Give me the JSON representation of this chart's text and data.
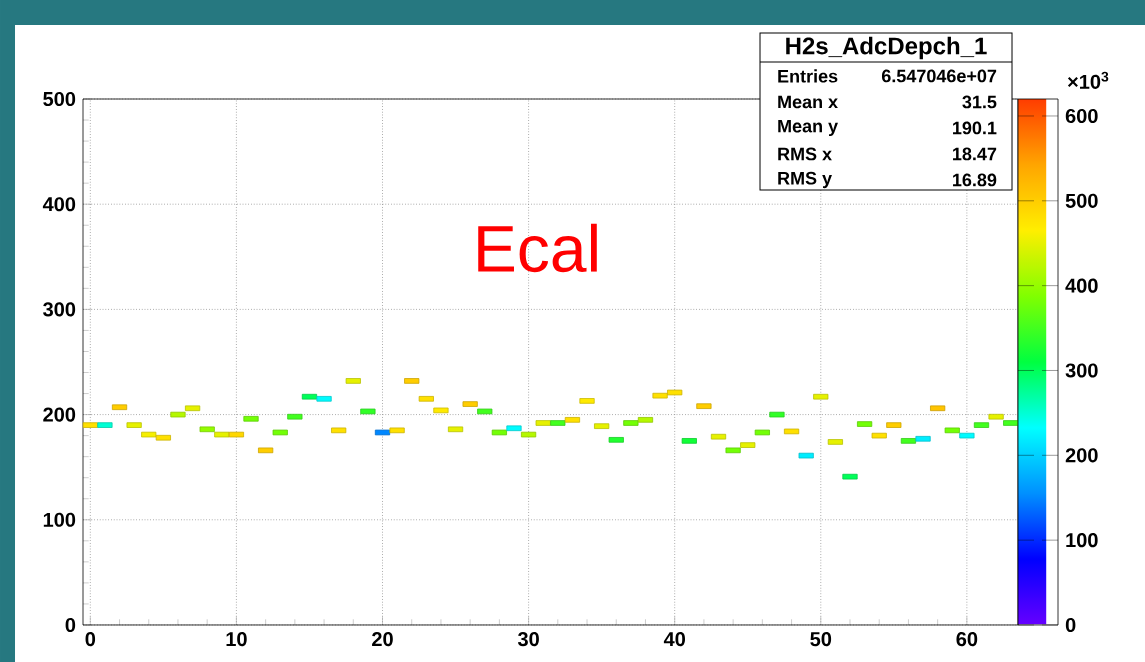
{
  "chart_data": {
    "type": "scatter",
    "title": "H2s_AdcDepch_1",
    "x": [
      0,
      1,
      2,
      3,
      4,
      5,
      6,
      7,
      8,
      9,
      10,
      11,
      12,
      13,
      14,
      15,
      16,
      17,
      18,
      19,
      20,
      21,
      22,
      23,
      24,
      25,
      26,
      27,
      28,
      29,
      30,
      31,
      32,
      33,
      34,
      35,
      36,
      37,
      38,
      39,
      40,
      41,
      42,
      43,
      44,
      45,
      46,
      47,
      48,
      49,
      50,
      51,
      52,
      53,
      54,
      55,
      56,
      57,
      58,
      59,
      60,
      61,
      62,
      63
    ],
    "values": [
      190,
      190,
      207,
      190,
      181,
      178,
      200,
      206,
      186,
      181,
      181,
      196,
      166,
      183,
      198,
      217,
      215,
      185,
      232,
      203,
      183,
      185,
      232,
      215,
      204,
      186,
      210,
      203,
      183,
      187,
      181,
      192,
      192,
      195,
      213,
      189,
      176,
      192,
      195,
      218,
      221,
      175,
      208,
      179,
      166,
      171,
      183,
      200,
      184,
      161,
      217,
      174,
      141,
      191,
      180,
      190,
      175,
      177,
      206,
      185,
      180,
      190,
      198,
      192
    ],
    "cvalues": [
      480,
      250,
      500,
      450,
      460,
      480,
      420,
      450,
      400,
      450,
      490,
      380,
      500,
      380,
      350,
      300,
      230,
      480,
      450,
      340,
      150,
      480,
      500,
      480,
      470,
      450,
      500,
      350,
      380,
      230,
      420,
      450,
      350,
      480,
      470,
      450,
      330,
      380,
      420,
      480,
      480,
      320,
      500,
      450,
      380,
      450,
      380,
      340,
      480,
      220,
      450,
      450,
      300,
      380,
      480,
      500,
      350,
      220,
      510,
      380,
      230,
      350,
      450,
      350
    ],
    "xlim": [
      -0.5,
      63.5
    ],
    "xticks": [
      0,
      10,
      20,
      30,
      40,
      50,
      60
    ],
    "ylim": [
      0,
      500
    ],
    "yticks": [
      0,
      100,
      200,
      300,
      400,
      500
    ],
    "clim": [
      0,
      620
    ],
    "cticks": [
      0,
      100,
      200,
      300,
      400,
      500,
      600
    ],
    "clabel": "×10$^{3}$",
    "grid": true,
    "marker": "square",
    "annotations": [
      "Ecal",
      "Entries",
      "6.547046e+07",
      "Mean x",
      "31.5",
      "Mean y",
      "190.1",
      "RMS x",
      "18.47",
      "RMS y",
      "16.89"
    ]
  }
}
